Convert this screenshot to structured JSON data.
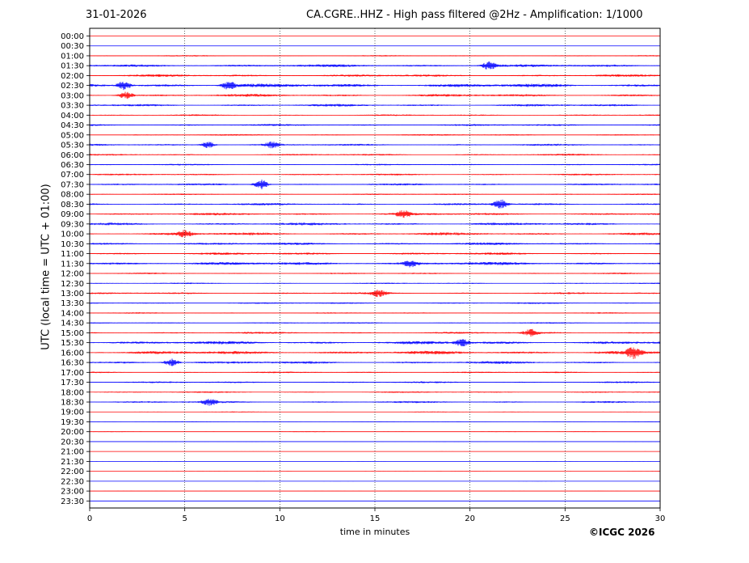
{
  "header": {
    "date": "31-01-2026",
    "title": "CA.CGRE..HHZ - High pass filtered @2Hz - Amplification: 1/1000"
  },
  "footer": {
    "copyright": "©ICGC 2026"
  },
  "colors": {
    "blue": "#0000ff",
    "red": "#ff0000"
  },
  "chart_data": {
    "type": "seismogram-helicorder",
    "xlabel": "time in minutes",
    "ylabel": "UTC (local time = UTC + 01:00)",
    "xlim": [
      0,
      30
    ],
    "x_ticks": [
      "0",
      "5",
      "10",
      "15",
      "20",
      "25",
      "30"
    ],
    "vertical_gridlines": [
      5,
      10,
      15,
      20,
      25
    ],
    "grid_style": "dotted",
    "row_labels": [
      "00:00",
      "00:30",
      "01:00",
      "01:30",
      "02:00",
      "02:30",
      "03:00",
      "03:30",
      "04:00",
      "04:30",
      "05:00",
      "05:30",
      "06:00",
      "06:30",
      "07:00",
      "07:30",
      "08:00",
      "08:30",
      "09:00",
      "09:30",
      "10:00",
      "10:30",
      "11:00",
      "11:30",
      "12:00",
      "12:30",
      "13:00",
      "13:30",
      "14:00",
      "14:30",
      "15:00",
      "15:30",
      "16:00",
      "16:30",
      "17:00",
      "17:30",
      "18:00",
      "18:30",
      "19:00",
      "19:30",
      "20:00",
      "20:30",
      "21:00",
      "21:30",
      "22:00",
      "22:30",
      "23:00",
      "23:30"
    ],
    "row_colors": "alternating red/blue starting with red at 00:00",
    "row_activity": [
      0.03,
      0.05,
      0.3,
      0.6,
      0.55,
      0.8,
      0.6,
      0.55,
      0.35,
      0.45,
      0.35,
      0.45,
      0.4,
      0.35,
      0.4,
      0.45,
      0.3,
      0.5,
      0.55,
      0.6,
      0.6,
      0.55,
      0.55,
      0.7,
      0.35,
      0.3,
      0.45,
      0.35,
      0.3,
      0.3,
      0.45,
      0.7,
      0.75,
      0.6,
      0.35,
      0.4,
      0.35,
      0.45,
      0.2,
      0.2,
      0.18,
      0.12,
      0.1,
      0.1,
      0.12,
      0.1,
      0.1,
      0.08
    ],
    "events": [
      {
        "row": "01:30",
        "minute": 21.0,
        "strength": 1.6
      },
      {
        "row": "02:30",
        "minute": 1.8,
        "strength": 1.7
      },
      {
        "row": "02:30",
        "minute": 7.3,
        "strength": 1.5
      },
      {
        "row": "03:00",
        "minute": 1.9,
        "strength": 1.4
      },
      {
        "row": "05:30",
        "minute": 6.2,
        "strength": 1.3
      },
      {
        "row": "05:30",
        "minute": 9.6,
        "strength": 1.2
      },
      {
        "row": "07:30",
        "minute": 9.0,
        "strength": 2.0
      },
      {
        "row": "08:30",
        "minute": 21.6,
        "strength": 1.8
      },
      {
        "row": "09:00",
        "minute": 16.5,
        "strength": 1.3
      },
      {
        "row": "10:00",
        "minute": 5.0,
        "strength": 1.3
      },
      {
        "row": "11:30",
        "minute": 16.9,
        "strength": 1.2
      },
      {
        "row": "13:00",
        "minute": 15.2,
        "strength": 1.2
      },
      {
        "row": "15:00",
        "minute": 23.2,
        "strength": 1.3
      },
      {
        "row": "15:30",
        "minute": 19.6,
        "strength": 1.4
      },
      {
        "row": "16:00",
        "minute": 28.6,
        "strength": 2.2
      },
      {
        "row": "16:30",
        "minute": 4.3,
        "strength": 1.5
      },
      {
        "row": "18:30",
        "minute": 6.3,
        "strength": 1.2
      }
    ]
  }
}
